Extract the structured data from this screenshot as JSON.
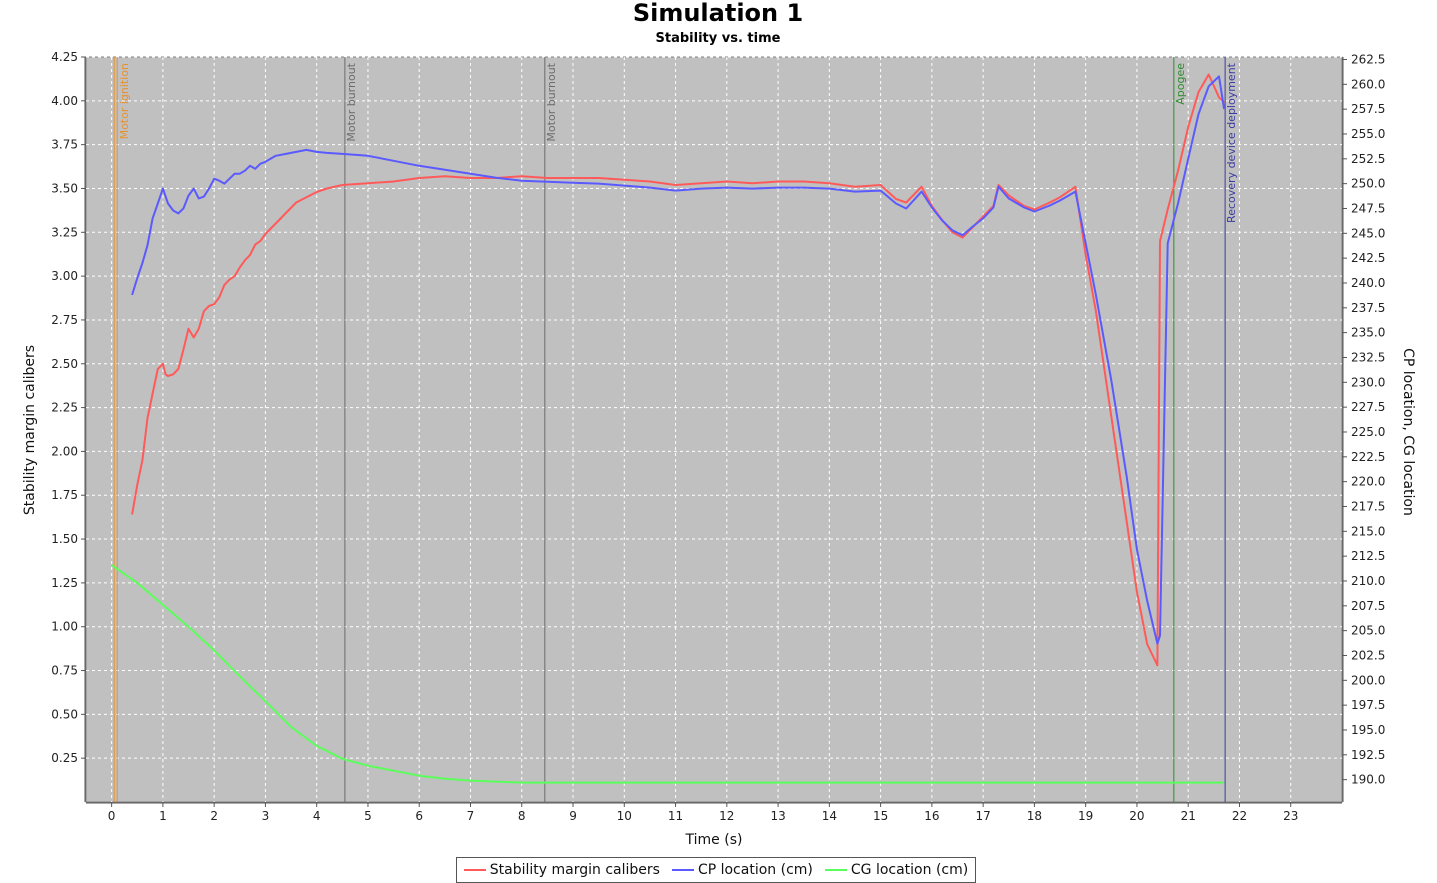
{
  "chart_data": {
    "type": "line",
    "title": "Simulation 1",
    "subtitle": "Stability vs. time",
    "xlabel": "Time (s)",
    "ylabel": "Stability margin calibers",
    "y2label": "CP location, CG location",
    "xlim": [
      -0.5,
      24.0
    ],
    "ylim": [
      0.0,
      4.25
    ],
    "y2lim": [
      187.75,
      262.75
    ],
    "xticks": [
      "0",
      "1",
      "2",
      "3",
      "4",
      "5",
      "6",
      "7",
      "8",
      "9",
      "10",
      "11",
      "12",
      "13",
      "14",
      "15",
      "16",
      "17",
      "18",
      "19",
      "20",
      "21",
      "22",
      "23"
    ],
    "yticks": [
      "0.25",
      "0.50",
      "0.75",
      "1.00",
      "1.25",
      "1.50",
      "1.75",
      "2.00",
      "2.25",
      "2.50",
      "2.75",
      "3.00",
      "3.25",
      "3.50",
      "3.75",
      "4.00",
      "4.25"
    ],
    "y2ticks": [
      "190.0",
      "192.5",
      "195.0",
      "197.5",
      "200.0",
      "202.5",
      "205.0",
      "207.5",
      "210.0",
      "212.5",
      "215.0",
      "217.5",
      "220.0",
      "222.5",
      "225.0",
      "227.5",
      "230.0",
      "232.5",
      "235.0",
      "237.5",
      "240.0",
      "242.5",
      "245.0",
      "247.5",
      "250.0",
      "252.5",
      "255.0",
      "257.5",
      "260.0",
      "262.5"
    ],
    "grid": true,
    "legend_position": "bottom",
    "background_color": "#c0c0c0",
    "events": [
      {
        "label": "Motor ignition",
        "x": 0.05,
        "color": "#e8912f"
      },
      {
        "label": "Motor burnout",
        "x": 4.55,
        "color": "#6b6b6b"
      },
      {
        "label": "Motor burnout",
        "x": 8.45,
        "color": "#6b6b6b"
      },
      {
        "label": "Apogee",
        "x": 20.72,
        "color": "#2e8b2e"
      },
      {
        "label": "Recovery device deployment",
        "x": 21.72,
        "color": "#3a3aa0"
      }
    ],
    "series": [
      {
        "name": "Stability margin calibers",
        "color": "#ff5a5a",
        "axis": "left",
        "x": [
          0.4,
          0.5,
          0.6,
          0.7,
          0.8,
          0.9,
          1.0,
          1.05,
          1.1,
          1.2,
          1.3,
          1.4,
          1.5,
          1.6,
          1.7,
          1.8,
          1.9,
          2.0,
          2.1,
          2.2,
          2.3,
          2.4,
          2.5,
          2.6,
          2.7,
          2.8,
          2.9,
          3.0,
          3.2,
          3.4,
          3.6,
          3.8,
          4.0,
          4.2,
          4.5,
          5.0,
          5.5,
          6.0,
          6.5,
          7.0,
          7.5,
          8.0,
          8.5,
          9.0,
          9.5,
          10.0,
          10.5,
          11.0,
          11.5,
          12.0,
          12.5,
          13.0,
          13.5,
          14.0,
          14.5,
          15.0,
          15.3,
          15.5,
          15.8,
          16.0,
          16.2,
          16.4,
          16.6,
          16.8,
          17.0,
          17.2,
          17.3,
          17.5,
          17.8,
          18.0,
          18.3,
          18.5,
          18.8,
          19.0,
          19.2,
          19.5,
          19.8,
          20.0,
          20.2,
          20.4,
          20.45,
          20.6,
          20.8,
          21.0,
          21.2,
          21.4,
          21.6,
          21.7
        ],
        "values": [
          1.64,
          1.81,
          1.95,
          2.19,
          2.33,
          2.47,
          2.5,
          2.44,
          2.43,
          2.44,
          2.47,
          2.58,
          2.7,
          2.65,
          2.7,
          2.8,
          2.83,
          2.84,
          2.88,
          2.95,
          2.98,
          3.0,
          3.05,
          3.09,
          3.12,
          3.18,
          3.2,
          3.24,
          3.3,
          3.36,
          3.42,
          3.45,
          3.48,
          3.5,
          3.52,
          3.53,
          3.54,
          3.56,
          3.57,
          3.56,
          3.56,
          3.57,
          3.56,
          3.56,
          3.56,
          3.55,
          3.54,
          3.52,
          3.53,
          3.54,
          3.53,
          3.54,
          3.54,
          3.53,
          3.51,
          3.52,
          3.44,
          3.42,
          3.51,
          3.4,
          3.32,
          3.25,
          3.22,
          3.28,
          3.34,
          3.4,
          3.52,
          3.46,
          3.4,
          3.38,
          3.42,
          3.45,
          3.51,
          3.12,
          2.8,
          2.2,
          1.6,
          1.2,
          0.9,
          0.78,
          3.2,
          3.38,
          3.6,
          3.85,
          4.05,
          4.15,
          4.02,
          3.99
        ]
      },
      {
        "name": "CP location (cm)",
        "color": "#5a5aff",
        "axis": "right",
        "x": [
          0.4,
          0.5,
          0.6,
          0.7,
          0.8,
          0.9,
          1.0,
          1.1,
          1.2,
          1.3,
          1.4,
          1.5,
          1.6,
          1.7,
          1.8,
          1.9,
          2.0,
          2.1,
          2.2,
          2.3,
          2.4,
          2.5,
          2.6,
          2.7,
          2.8,
          2.9,
          3.0,
          3.2,
          3.4,
          3.6,
          3.8,
          4.0,
          4.2,
          4.5,
          5.0,
          5.5,
          6.0,
          6.5,
          7.0,
          7.5,
          8.0,
          8.5,
          9.0,
          9.5,
          10.0,
          10.5,
          11.0,
          11.5,
          12.0,
          12.5,
          13.0,
          13.5,
          14.0,
          14.5,
          15.0,
          15.3,
          15.5,
          15.8,
          16.0,
          16.2,
          16.4,
          16.6,
          16.8,
          17.0,
          17.2,
          17.3,
          17.5,
          17.8,
          18.0,
          18.3,
          18.5,
          18.8,
          19.0,
          19.2,
          19.5,
          19.8,
          20.0,
          20.2,
          20.4,
          20.45,
          20.6,
          20.8,
          21.0,
          21.2,
          21.4,
          21.6,
          21.7
        ],
        "values": [
          238.8,
          240.5,
          242.0,
          243.8,
          246.5,
          248.0,
          249.5,
          248.0,
          247.3,
          247.0,
          247.5,
          248.8,
          249.5,
          248.5,
          248.7,
          249.5,
          250.5,
          250.3,
          250.0,
          250.5,
          251.0,
          251.0,
          251.3,
          251.8,
          251.5,
          252.0,
          252.2,
          252.8,
          253.0,
          253.2,
          253.4,
          253.2,
          253.1,
          253.0,
          252.8,
          252.3,
          251.8,
          251.4,
          251.0,
          250.6,
          250.3,
          250.2,
          250.1,
          250.0,
          249.8,
          249.6,
          249.3,
          249.5,
          249.6,
          249.5,
          249.6,
          249.6,
          249.5,
          249.2,
          249.3,
          248.0,
          247.5,
          249.2,
          247.6,
          246.3,
          245.3,
          244.8,
          245.7,
          246.5,
          247.6,
          249.7,
          248.5,
          247.6,
          247.2,
          247.8,
          248.3,
          249.2,
          244.0,
          238.8,
          230.2,
          220.5,
          213.2,
          208.0,
          203.7,
          204.5,
          244.0,
          248.0,
          252.5,
          257.0,
          259.8,
          260.8,
          257.5
        ]
      },
      {
        "name": "CG location (cm)",
        "color": "#5aff5a",
        "axis": "right",
        "x": [
          0.0,
          0.5,
          1.0,
          1.5,
          2.0,
          2.5,
          3.0,
          3.5,
          4.0,
          4.5,
          5.0,
          5.5,
          6.0,
          6.5,
          7.0,
          7.5,
          8.0,
          9.0,
          10.0,
          12.0,
          14.0,
          16.0,
          18.0,
          20.0,
          21.0,
          21.7
        ],
        "values": [
          211.6,
          209.8,
          207.6,
          205.4,
          203.0,
          200.4,
          197.9,
          195.3,
          193.4,
          192.1,
          191.4,
          190.9,
          190.4,
          190.1,
          189.9,
          189.8,
          189.7,
          189.7,
          189.7,
          189.7,
          189.7,
          189.7,
          189.7,
          189.7,
          189.7,
          189.7
        ]
      }
    ]
  }
}
